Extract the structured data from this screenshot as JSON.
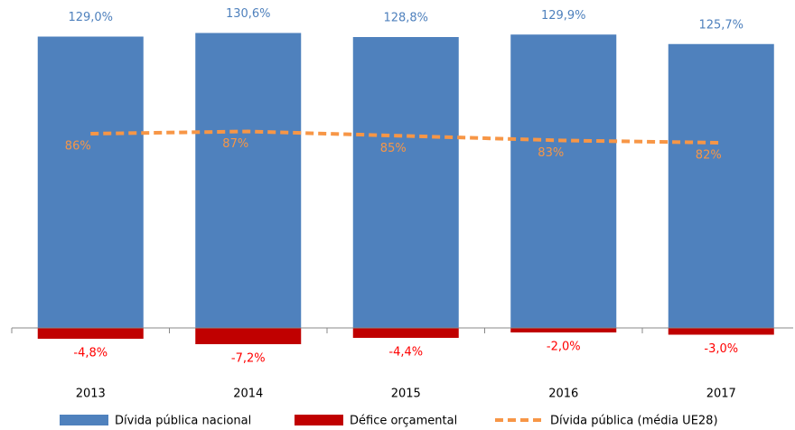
{
  "chart_data": {
    "type": "bar",
    "categories": [
      "2013",
      "2014",
      "2015",
      "2016",
      "2017"
    ],
    "ylim": [
      -10,
      140
    ],
    "legend": "bottom",
    "series": [
      {
        "name": "Dívida pública nacional",
        "type": "bar",
        "color": "#4f81bd",
        "label_color": "#4f81bd",
        "values": [
          129.0,
          130.6,
          128.8,
          129.9,
          125.7
        ],
        "value_labels": [
          "129,0%",
          "130,6%",
          "128,8%",
          "129,9%",
          "125,7%"
        ]
      },
      {
        "name": "Défice orçamental",
        "type": "bar",
        "color": "#c00000",
        "label_color": "#ff0000",
        "values": [
          -4.8,
          -7.2,
          -4.4,
          -2.0,
          -3.0
        ],
        "value_labels": [
          "-4,8%",
          "-7,2%",
          "-4,4%",
          "-2,0%",
          "-3,0%"
        ]
      },
      {
        "name": "Dívida pública (média UE28)",
        "type": "line",
        "color": "#f79646",
        "label_color": "#f79646",
        "values": [
          86,
          87,
          85,
          83,
          82
        ],
        "value_labels": [
          "86%",
          "87%",
          "85%",
          "83%",
          "82%"
        ]
      }
    ]
  }
}
